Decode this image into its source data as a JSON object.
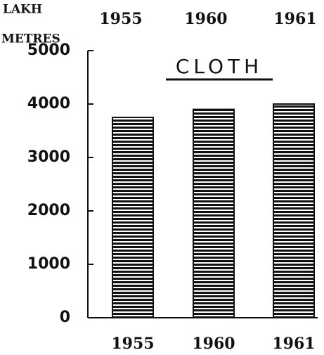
{
  "chart_data": {
    "type": "bar",
    "title": "CLOTH",
    "ylabel": [
      "LAKH",
      "METRES"
    ],
    "categories": [
      "1955",
      "1960",
      "1961"
    ],
    "values": [
      3750,
      3900,
      4000
    ],
    "color": "#111111",
    "ylim": [
      0,
      5000
    ],
    "yticks": [
      0,
      1000,
      2000,
      3000,
      4000,
      5000
    ]
  }
}
